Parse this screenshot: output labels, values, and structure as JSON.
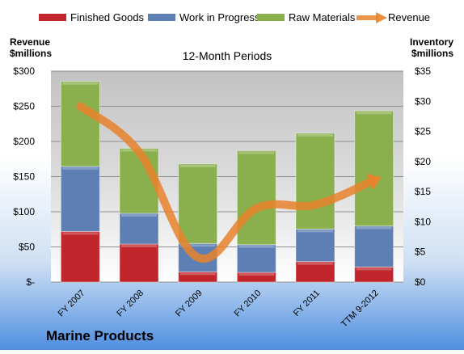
{
  "chart_data": {
    "type": "bar",
    "stacked": true,
    "title": "12-Month Periods",
    "company": "Marine Products",
    "categories": [
      "FY 2007",
      "FY 2008",
      "FY 2009",
      "FY 2010",
      "FY 2011",
      "TTM 9-2012"
    ],
    "left_axis": {
      "label_line1": "Revenue",
      "label_line2": "$millions",
      "min": 0,
      "max": 300,
      "step": 50,
      "ticks": [
        "$-",
        "$50",
        "$100",
        "$150",
        "$200",
        "$250",
        "$300"
      ]
    },
    "right_axis": {
      "label_line1": "Inventory",
      "label_line2": "$millions",
      "min": 0,
      "max": 35,
      "step": 5,
      "ticks": [
        "$0",
        "$5",
        "$10",
        "$15",
        "$20",
        "$25",
        "$30",
        "$35"
      ]
    },
    "series": [
      {
        "name": "Finished Goods",
        "axis": "right",
        "kind": "bar",
        "color": "#c0262b",
        "values": [
          8.4,
          6.3,
          1.7,
          1.6,
          3.4,
          2.5
        ]
      },
      {
        "name": "Work in Progress",
        "axis": "right",
        "kind": "bar",
        "color": "#5d7fb3",
        "values": [
          10.8,
          5.1,
          4.7,
          4.6,
          5.4,
          6.8
        ]
      },
      {
        "name": "Raw Materials",
        "axis": "right",
        "kind": "bar",
        "color": "#8ab04e",
        "values": [
          14.1,
          10.8,
          13.2,
          15.6,
          15.9,
          19.1
        ]
      },
      {
        "name": "Revenue",
        "axis": "left",
        "kind": "line",
        "color": "#e8822d",
        "values": [
          250,
          185,
          35,
          105,
          110,
          145
        ]
      }
    ],
    "grid": true,
    "legend": "top"
  }
}
